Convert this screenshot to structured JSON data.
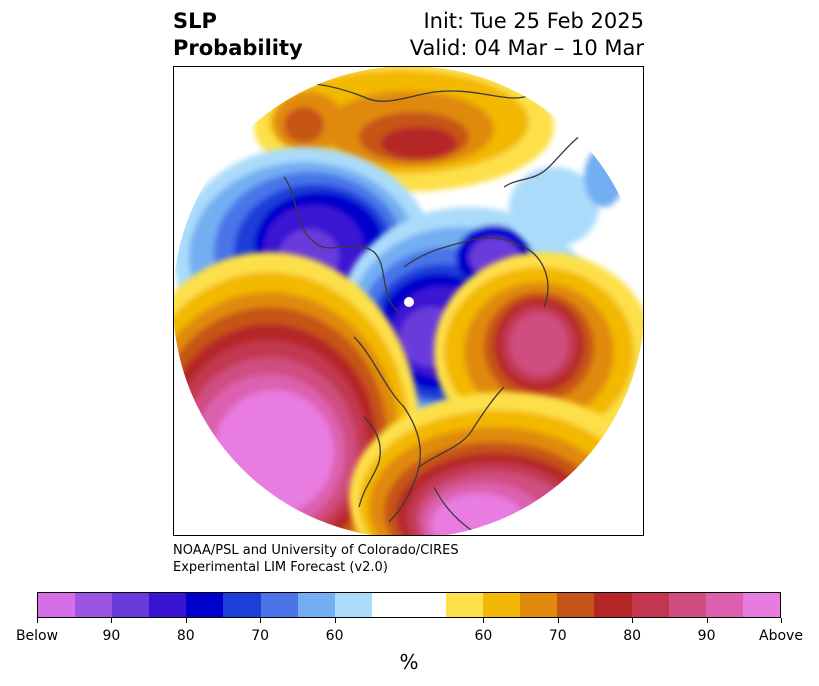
{
  "header": {
    "title_line1": "SLP",
    "title_line2": "Probability",
    "init": "Init: Tue 25 Feb 2025",
    "valid": "Valid: 04 Mar – 10 Mar"
  },
  "credit": {
    "line1": "NOAA/PSL and University of Colorado/CIRES",
    "line2": "Experimental LIM Forecast (v2.0)"
  },
  "colorbar": {
    "colors": [
      "#d66ee8",
      "#9c55e0",
      "#6b3adb",
      "#3a14d3",
      "#0000cc",
      "#1e3ed8",
      "#4a74e8",
      "#73aef2",
      "#aadbfa",
      "#ffffff",
      "#ffffff",
      "#fde04a",
      "#f3b805",
      "#e08a10",
      "#c65418",
      "#b52626",
      "#c2374f",
      "#cf4d7f",
      "#dd60af",
      "#e87be0"
    ],
    "ticks": [
      "Below",
      "90",
      "80",
      "70",
      "60",
      "60",
      "70",
      "80",
      "90",
      "Above"
    ],
    "units": "%"
  }
}
